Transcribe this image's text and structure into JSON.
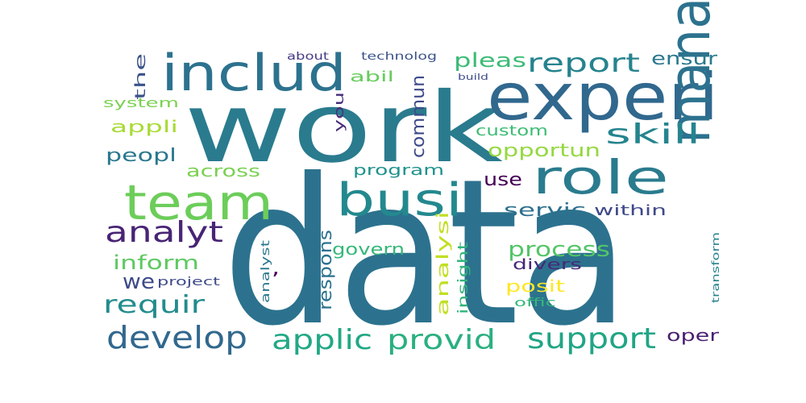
{
  "words": [
    {
      "text": "data",
      "color": "#2c728e"
    },
    {
      "text": "work",
      "color": "#2a7b8e"
    },
    {
      "text": "experi",
      "color": "#31688e"
    },
    {
      "text": "includ",
      "color": "#2c728e"
    },
    {
      "text": "team",
      "color": "#6ccd5a"
    },
    {
      "text": "busi",
      "color": "#23898e"
    },
    {
      "text": "role",
      "color": "#2a7b8e"
    },
    {
      "text": "manag",
      "color": "#2c728e"
    },
    {
      "text": "report",
      "color": "#25838e"
    },
    {
      "text": "skill",
      "color": "#25848e"
    },
    {
      "text": "develop",
      "color": "#31688e"
    },
    {
      "text": "analyt",
      "color": "#482475"
    },
    {
      "text": "support",
      "color": "#21a585"
    },
    {
      "text": "applic",
      "color": "#22a884"
    },
    {
      "text": "provid",
      "color": "#2ab07f"
    },
    {
      "text": "requir",
      "color": "#228c8d"
    },
    {
      "text": "process",
      "color": "#54c568"
    },
    {
      "text": "inform",
      "color": "#5ec962"
    },
    {
      "text": "pleas",
      "color": "#3bbb75"
    },
    {
      "text": "ensur",
      "color": "#2a788e"
    },
    {
      "text": "opportun",
      "color": "#95d840"
    },
    {
      "text": "custom",
      "color": "#3dbc74"
    },
    {
      "text": "servic",
      "color": "#2d708e"
    },
    {
      "text": "within",
      "color": "#3f4889"
    },
    {
      "text": "respons",
      "color": "#2c728e"
    },
    {
      "text": "govern",
      "color": "#35b779"
    },
    {
      "text": "analysi",
      "color": "#c2df23"
    },
    {
      "text": "insight",
      "color": "#31b57b"
    },
    {
      "text": "posit",
      "color": "#fde725"
    },
    {
      "text": "divers",
      "color": "#482878"
    },
    {
      "text": "oper",
      "color": "#481f70"
    },
    {
      "text": "commun",
      "color": "#3e4a89"
    },
    {
      "text": "program",
      "color": "#20928c"
    },
    {
      "text": "use",
      "color": "#440154"
    },
    {
      "text": "across",
      "color": "#7ad151"
    },
    {
      "text": "abil",
      "color": "#67cc5c"
    },
    {
      "text": "you",
      "color": "#472d7b"
    },
    {
      "text": "the",
      "color": "#3b528b"
    },
    {
      "text": "system",
      "color": "#7ad151"
    },
    {
      "text": "appli",
      "color": "#a8db34"
    },
    {
      "text": "peopl",
      "color": "#2a788e"
    },
    {
      "text": "we",
      "color": "#3e4989"
    },
    {
      "text": "project",
      "color": "#3e4989"
    },
    {
      "text": "analyst",
      "color": "#2a788e"
    },
    {
      "text": "offic",
      "color": "#35b779"
    },
    {
      "text": "transform",
      "color": "#25838e"
    },
    {
      "text": "about",
      "color": "#443983"
    },
    {
      "text": "technolog",
      "color": "#3b528b"
    },
    {
      "text": "build",
      "color": "#3e4c8a"
    },
    {
      "text": ",",
      "color": "#440154"
    }
  ]
}
